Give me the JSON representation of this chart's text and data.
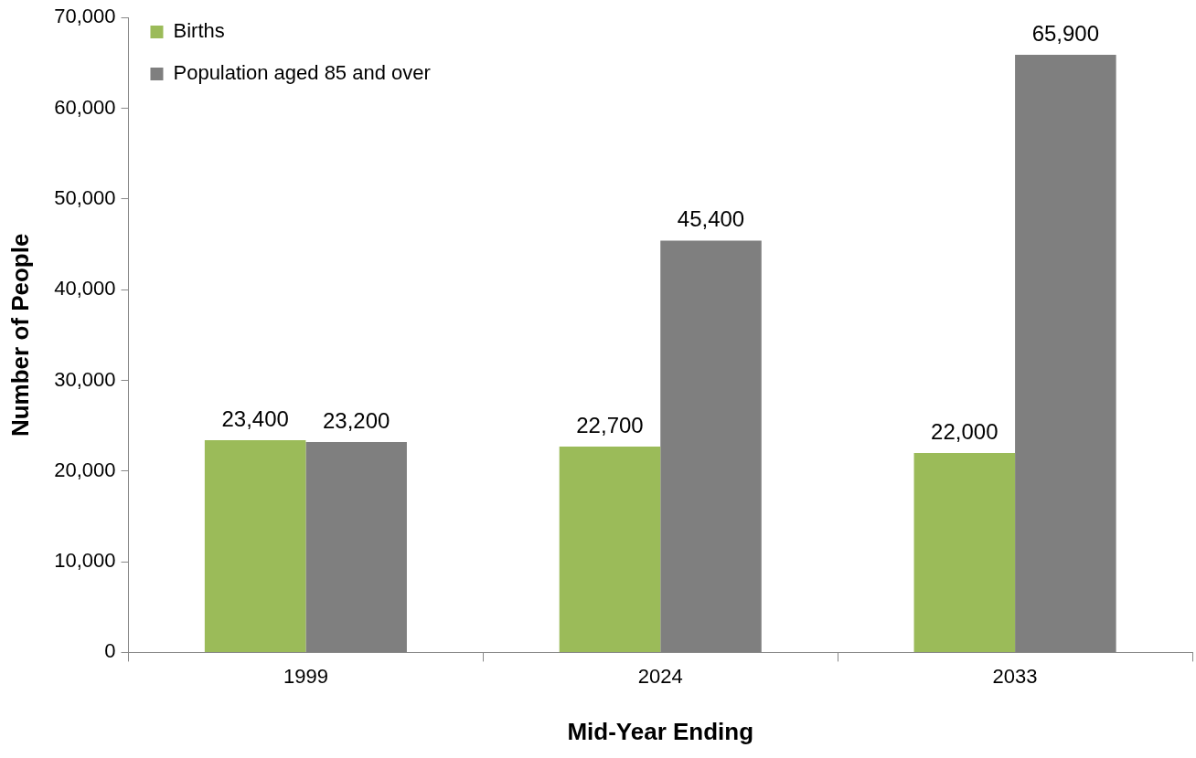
{
  "chart_data": {
    "type": "bar",
    "xlabel": "Mid-Year Ending",
    "ylabel": "Number of People",
    "categories": [
      "1999",
      "2024",
      "2033"
    ],
    "series": [
      {
        "name": "Births",
        "color": "#9bbb59",
        "values": [
          23400,
          22700,
          22000
        ],
        "value_labels": [
          "23,400",
          "22,700",
          "22,000"
        ]
      },
      {
        "name": "Population aged 85 and over",
        "color": "#7f7f7f",
        "values": [
          23200,
          45400,
          65900
        ],
        "value_labels": [
          "23,200",
          "45,400",
          "65,900"
        ]
      }
    ],
    "ylim": [
      0,
      70000
    ],
    "yticks": [
      0,
      {
        "value": 10000,
        "label": "10,000"
      },
      {
        "value": 20000,
        "label": "20,000"
      },
      {
        "value": 30000,
        "label": "30,000"
      },
      {
        "value": 40000,
        "label": "40,000"
      },
      {
        "value": 50000,
        "label": "50,000"
      },
      {
        "value": 60000,
        "label": "60,000"
      },
      {
        "value": 70000,
        "label": "70,000"
      }
    ],
    "grid": false,
    "legend": "top left"
  }
}
